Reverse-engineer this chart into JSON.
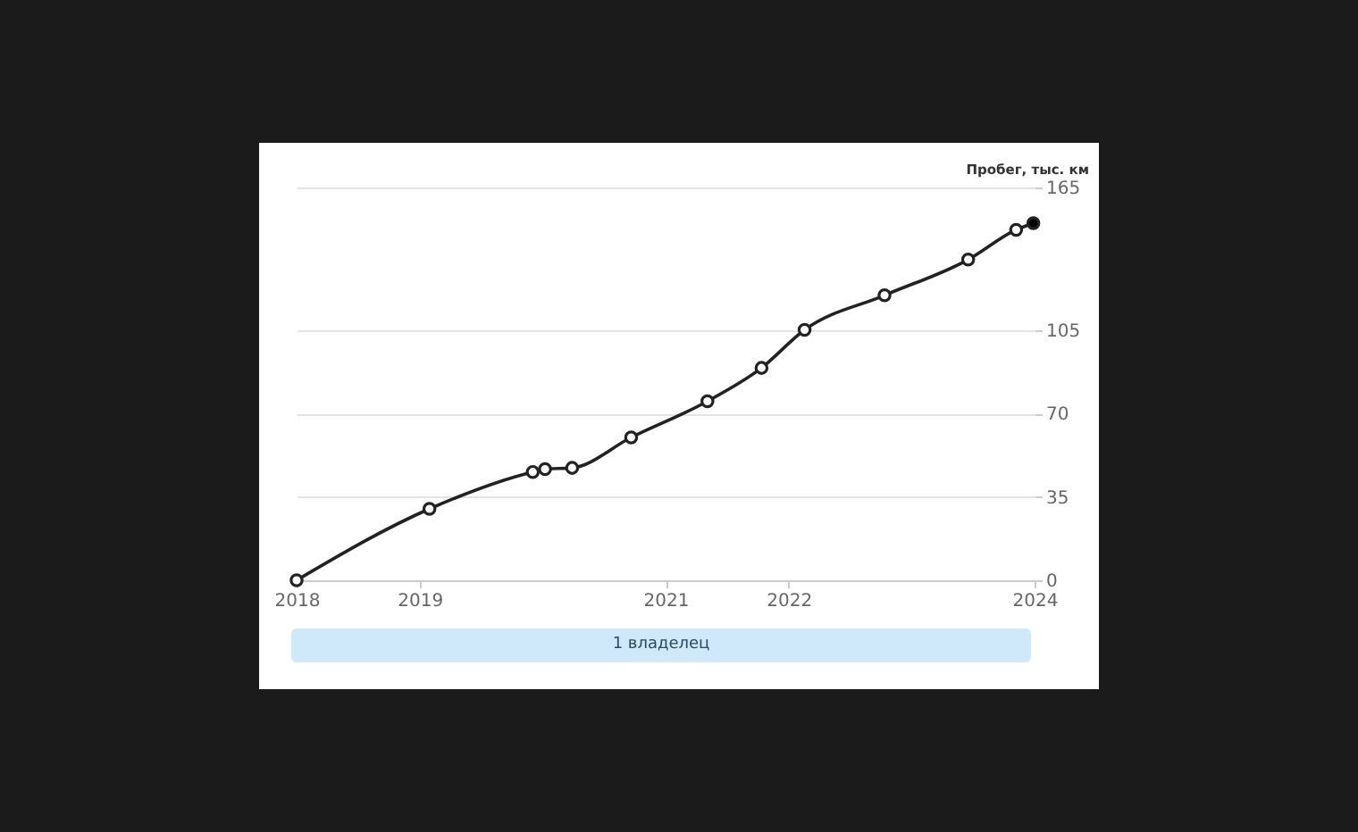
{
  "chart_data": {
    "type": "line",
    "ylabel": "Пробег, тыс. км",
    "x": [
      2018,
      2019.08,
      2019.92,
      2020.02,
      2020.24,
      2020.72,
      2021.34,
      2021.78,
      2022.13,
      2022.78,
      2023.46,
      2023.85,
      2023.99
    ],
    "series": [
      {
        "color": "#222222",
        "values": [
          0,
          30,
          45.5,
          46.7,
          47.2,
          60,
          75.2,
          89.2,
          105.2,
          119.7,
          134.7,
          147.2,
          150
        ],
        "colors": [
          "#ffffff",
          "#ffffff",
          "#ffffff",
          "#ffffff",
          "#ffffff",
          "#ffffff",
          "#ffffff",
          "#ffffff",
          "#ffffff",
          "#ffffff",
          "#ffffff",
          "#ffffff",
          "#000000"
        ]
      }
    ],
    "xlim": [
      2018,
      2024
    ],
    "xticks": [
      2018,
      2019,
      2021,
      2022,
      2024
    ],
    "ylim": [
      0,
      165
    ],
    "yticks": [
      0,
      35,
      70,
      105,
      165
    ],
    "grid": "y",
    "marker": "circle",
    "line_style": "solid",
    "annotations": [
      "1 владелец"
    ]
  }
}
